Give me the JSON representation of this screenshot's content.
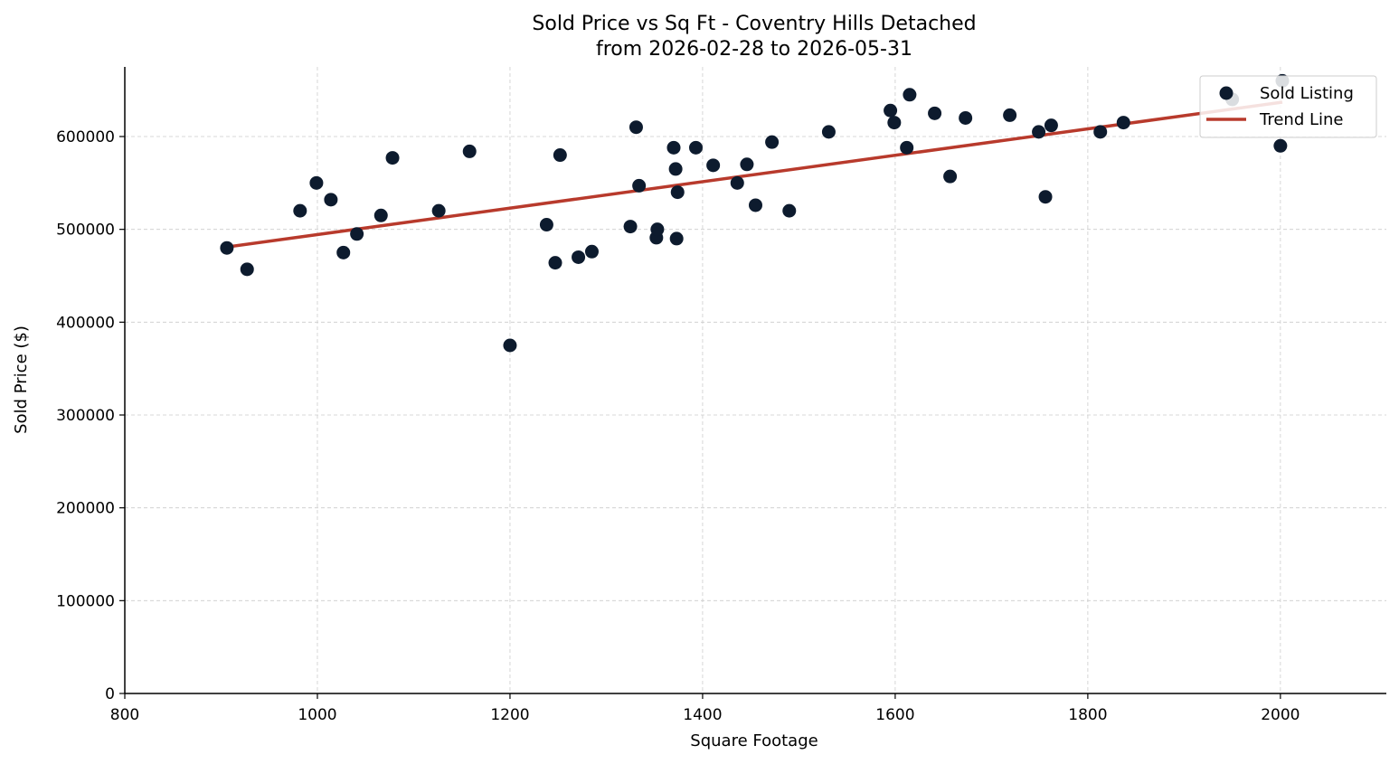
{
  "chart_data": {
    "type": "scatter",
    "title": "Sold Price vs Sq Ft - Coventry Hills Detached",
    "subtitle": "from 2026-02-28 to 2026-05-31",
    "xlabel": "Square Footage",
    "ylabel": "Sold Price ($)",
    "xlim": [
      800,
      2110
    ],
    "ylim": [
      0,
      675000
    ],
    "xticks": [
      800,
      1000,
      1200,
      1400,
      1600,
      1800,
      2000
    ],
    "yticks": [
      0,
      100000,
      200000,
      300000,
      400000,
      500000,
      600000
    ],
    "grid": true,
    "legend_position": "top-right",
    "colors": {
      "points": "#0d1b2e",
      "trend": "#b83a2c"
    },
    "series": [
      {
        "name": "Sold Listing",
        "kind": "scatter",
        "points": [
          [
            906,
            480000
          ],
          [
            927,
            457000
          ],
          [
            982,
            520000
          ],
          [
            999,
            550000
          ],
          [
            1014,
            532000
          ],
          [
            1027,
            475000
          ],
          [
            1041,
            495000
          ],
          [
            1066,
            515000
          ],
          [
            1078,
            577000
          ],
          [
            1126,
            520000
          ],
          [
            1158,
            584000
          ],
          [
            1200,
            375000
          ],
          [
            1238,
            505000
          ],
          [
            1247,
            464000
          ],
          [
            1252,
            580000
          ],
          [
            1271,
            470000
          ],
          [
            1285,
            476000
          ],
          [
            1325,
            503000
          ],
          [
            1331,
            610000
          ],
          [
            1334,
            547000
          ],
          [
            1352,
            491000
          ],
          [
            1353,
            500000
          ],
          [
            1370,
            588000
          ],
          [
            1372,
            565000
          ],
          [
            1373,
            490000
          ],
          [
            1374,
            540000
          ],
          [
            1393,
            588000
          ],
          [
            1411,
            569000
          ],
          [
            1436,
            550000
          ],
          [
            1446,
            570000
          ],
          [
            1455,
            526000
          ],
          [
            1472,
            594000
          ],
          [
            1490,
            520000
          ],
          [
            1531,
            605000
          ],
          [
            1595,
            628000
          ],
          [
            1599,
            615000
          ],
          [
            1612,
            588000
          ],
          [
            1615,
            645000
          ],
          [
            1641,
            625000
          ],
          [
            1657,
            557000
          ],
          [
            1673,
            620000
          ],
          [
            1719,
            623000
          ],
          [
            1749,
            605000
          ],
          [
            1756,
            535000
          ],
          [
            1762,
            612000
          ],
          [
            1813,
            605000
          ],
          [
            1837,
            615000
          ],
          [
            1950,
            640000
          ],
          [
            2000,
            590000
          ],
          [
            2002,
            660000
          ]
        ]
      },
      {
        "name": "Trend Line",
        "kind": "line",
        "points": [
          [
            906,
            481000
          ],
          [
            2002,
            637000
          ]
        ]
      }
    ]
  }
}
